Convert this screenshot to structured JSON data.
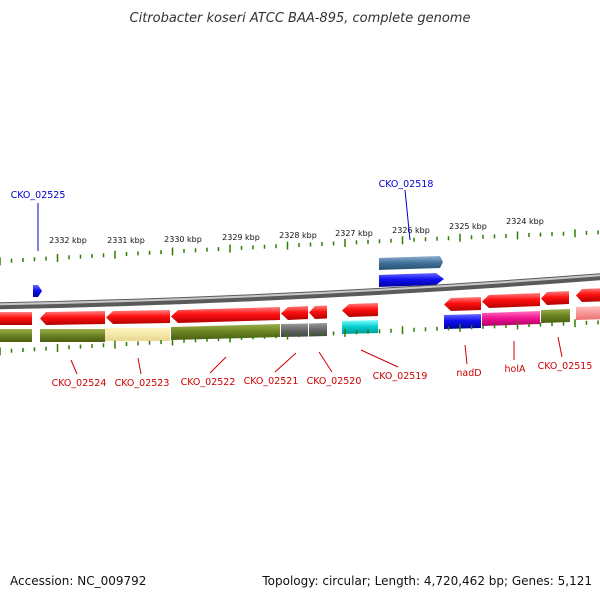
{
  "title": "Citrobacter koseri ATCC BAA-895, complete genome",
  "footer": {
    "accession": "Accession: NC_009792",
    "summary": "Topology: circular; Length: 4,720,462 bp; Genes: 5,121"
  },
  "scale": {
    "labels": [
      "2332 kbp",
      "2331 kbp",
      "2330 kbp",
      "2329 kbp",
      "2328 kbp",
      "2327 kbp",
      "2326 kbp",
      "2325 kbp",
      "2324 kbp"
    ]
  },
  "genes": {
    "forward_labels": [
      "CKO_02525",
      "CKO_02518"
    ],
    "reverse_labels": [
      "CKO_02524",
      "CKO_02523",
      "CKO_02522",
      "CKO_02521",
      "CKO_02520",
      "CKO_02519",
      "nadD",
      "holA",
      "CKO_02515"
    ]
  },
  "colors": {
    "backbone": "#8a8a8a",
    "forward_label": "#0000cc",
    "reverse_label": "#cc0000",
    "gene_red": "#ee0000",
    "tick_green": "#2e7d00"
  }
}
